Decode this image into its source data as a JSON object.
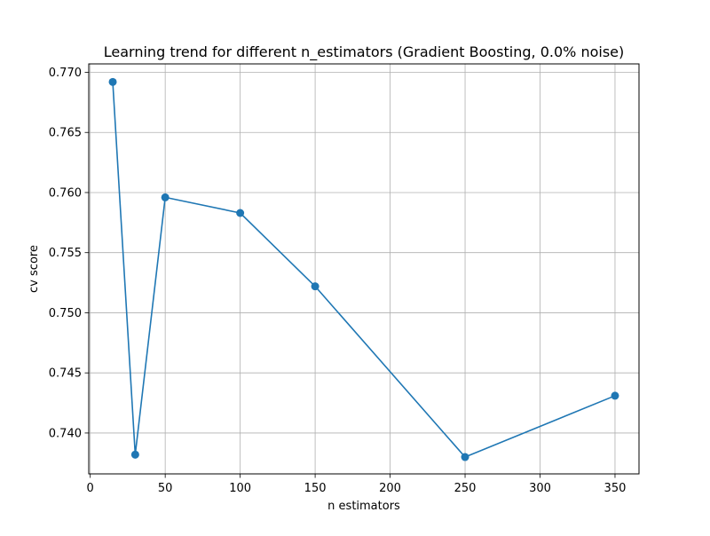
{
  "chart_data": {
    "type": "line",
    "title": "Learning trend for different n_estimators (Gradient Boosting, 0.0% noise)",
    "xlabel": "n estimators",
    "ylabel": "cv score",
    "xlim": [
      -1,
      366
    ],
    "ylim": [
      0.7366,
      0.7707
    ],
    "xticks": [
      0,
      50,
      100,
      150,
      200,
      250,
      300,
      350
    ],
    "xtick_labels": [
      "0",
      "50",
      "100",
      "150",
      "200",
      "250",
      "300",
      "350"
    ],
    "yticks": [
      0.74,
      0.745,
      0.75,
      0.755,
      0.76,
      0.765,
      0.77
    ],
    "ytick_labels": [
      "0.740",
      "0.745",
      "0.750",
      "0.755",
      "0.760",
      "0.765",
      "0.770"
    ],
    "grid": true,
    "marker": "circle",
    "series": [
      {
        "color": "#1f77b4",
        "x": [
          15,
          30,
          50,
          100,
          150,
          250,
          350
        ],
        "y": [
          0.7692,
          0.7382,
          0.7596,
          0.7583,
          0.7522,
          0.738,
          0.7431
        ]
      }
    ]
  }
}
